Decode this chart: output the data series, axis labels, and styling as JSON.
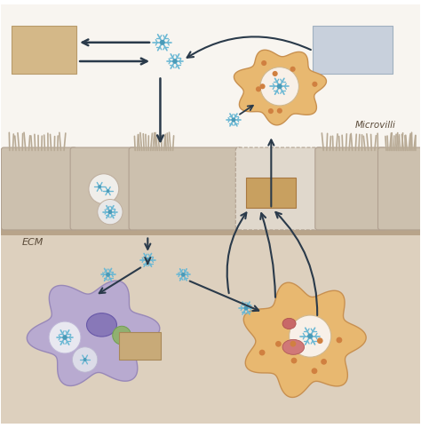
{
  "bg_color": "#ffffff",
  "ecm_bg": "#d4c8b8",
  "upper_bg": "#f5f0ea",
  "lower_bg": "#e8ddd0",
  "cell_body_color": "#c8bfb0",
  "cell_highlight": "#ddd5c8",
  "microvilli_color": "#b8aa98",
  "ecm_line_color": "#8a7a6a",
  "bacteria_color": "#6bb8d4",
  "bacteria_center": "#4a9ab8",
  "neutrophil_color": "#b0a8d0",
  "neutrophil_border": "#9088b8",
  "macrophage_color": "#e8c87a",
  "macrophage_border": "#c8a850",
  "nucleus_color": "#8878b8",
  "nucleus2_color": "#90a878",
  "vacuole_color": "#e8e8e8",
  "tan_box_color": "#c8aa78",
  "blue_box_color": "#c8d8e8",
  "arrow_color": "#2a3a4a",
  "label_ecm": "ECM",
  "label_microvilli": "Microvilli",
  "figsize": [
    4.74,
    4.82
  ],
  "dpi": 100
}
